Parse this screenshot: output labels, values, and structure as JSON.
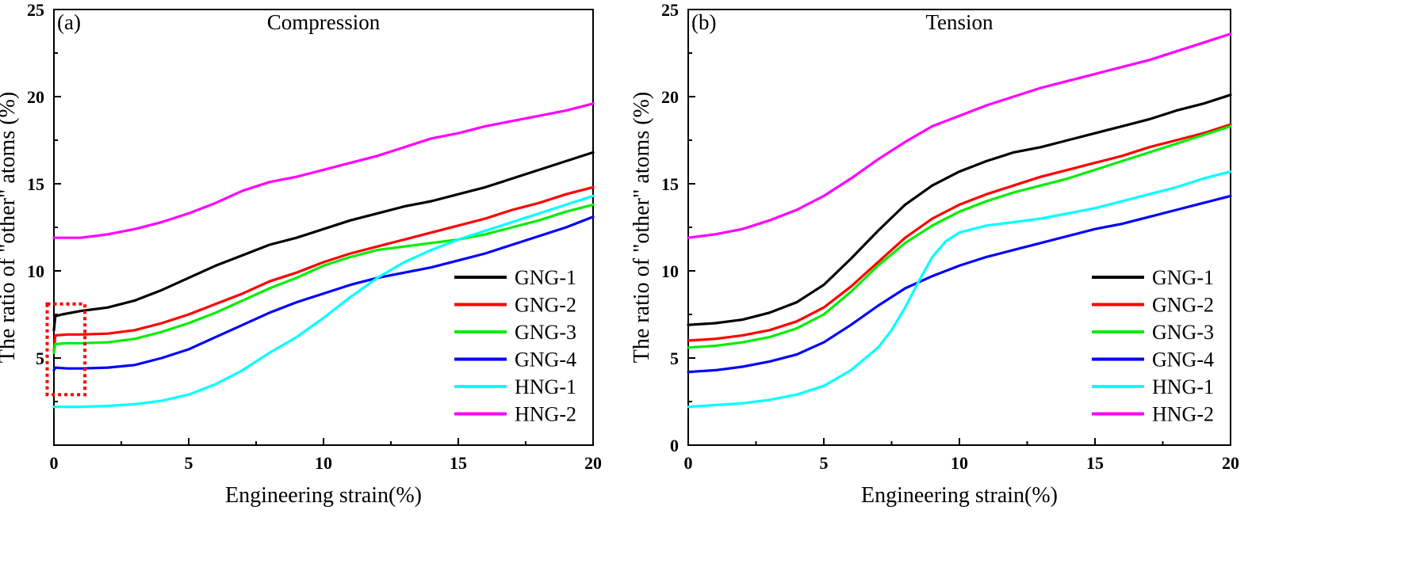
{
  "chart_data": [
    {
      "type": "line",
      "panel_label": "(a)",
      "title": "Compression",
      "xlabel": "Engineering strain(%)",
      "ylabel": "The ratio of  \"other\" atoms (%)",
      "xlim": [
        0,
        20
      ],
      "ylim": [
        0,
        25
      ],
      "xticks": [
        0,
        5,
        10,
        15,
        20
      ],
      "yticks": [
        5,
        10,
        15,
        20,
        25
      ],
      "grid": false,
      "legend_position": "lower-right",
      "annotation": "red dotted box at strain 0–1%",
      "series": [
        {
          "name": "GNG-1",
          "color": "#000000",
          "x": [
            0,
            0.05,
            0.3,
            1,
            2,
            3,
            4,
            5,
            6,
            7,
            8,
            9,
            10,
            11,
            12,
            13,
            14,
            15,
            16,
            17,
            18,
            19,
            20
          ],
          "y": [
            6.6,
            7.4,
            7.5,
            7.7,
            7.9,
            8.3,
            8.9,
            9.6,
            10.3,
            10.9,
            11.5,
            11.9,
            12.4,
            12.9,
            13.3,
            13.7,
            14.0,
            14.4,
            14.8,
            15.3,
            15.8,
            16.3,
            16.8
          ]
        },
        {
          "name": "GNG-2",
          "color": "#ff0000",
          "x": [
            0,
            0.05,
            0.5,
            1,
            2,
            3,
            4,
            5,
            6,
            7,
            8,
            9,
            10,
            11,
            12,
            13,
            14,
            15,
            16,
            17,
            18,
            19,
            20
          ],
          "y": [
            5.4,
            6.3,
            6.35,
            6.35,
            6.4,
            6.6,
            7.0,
            7.5,
            8.1,
            8.7,
            9.4,
            9.9,
            10.5,
            11.0,
            11.4,
            11.8,
            12.2,
            12.6,
            13.0,
            13.5,
            13.9,
            14.4,
            14.8
          ]
        },
        {
          "name": "GNG-3",
          "color": "#00ee00",
          "x": [
            0,
            0.05,
            0.5,
            1,
            2,
            3,
            4,
            5,
            6,
            7,
            8,
            9,
            10,
            11,
            12,
            13,
            14,
            15,
            16,
            17,
            18,
            19,
            20
          ],
          "y": [
            5.3,
            5.8,
            5.85,
            5.85,
            5.9,
            6.1,
            6.5,
            7.0,
            7.6,
            8.3,
            9.0,
            9.6,
            10.3,
            10.8,
            11.2,
            11.4,
            11.6,
            11.8,
            12.1,
            12.5,
            12.9,
            13.4,
            13.8
          ]
        },
        {
          "name": "GNG-4",
          "color": "#0000ff",
          "x": [
            0,
            0.05,
            0.5,
            1,
            2,
            3,
            4,
            5,
            6,
            7,
            8,
            9,
            10,
            11,
            12,
            13,
            14,
            15,
            16,
            17,
            18,
            19,
            20
          ],
          "y": [
            4.3,
            4.45,
            4.4,
            4.4,
            4.45,
            4.6,
            5.0,
            5.5,
            6.2,
            6.9,
            7.6,
            8.2,
            8.7,
            9.2,
            9.6,
            9.9,
            10.2,
            10.6,
            11.0,
            11.5,
            12.0,
            12.5,
            13.1
          ]
        },
        {
          "name": "HNG-1",
          "color": "#00ffff",
          "x": [
            0,
            1,
            2,
            3,
            4,
            5,
            6,
            7,
            8,
            9,
            10,
            11,
            12,
            13,
            14,
            15,
            16,
            17,
            18,
            19,
            20
          ],
          "y": [
            2.2,
            2.2,
            2.25,
            2.35,
            2.55,
            2.9,
            3.5,
            4.3,
            5.3,
            6.2,
            7.3,
            8.5,
            9.6,
            10.5,
            11.2,
            11.8,
            12.3,
            12.8,
            13.3,
            13.8,
            14.3
          ]
        },
        {
          "name": "HNG-2",
          "color": "#ff00ff",
          "x": [
            0,
            1,
            2,
            3,
            4,
            5,
            6,
            7,
            8,
            9,
            10,
            11,
            12,
            13,
            14,
            15,
            16,
            17,
            18,
            19,
            20
          ],
          "y": [
            11.9,
            11.9,
            12.1,
            12.4,
            12.8,
            13.3,
            13.9,
            14.6,
            15.1,
            15.4,
            15.8,
            16.2,
            16.6,
            17.1,
            17.6,
            17.9,
            18.3,
            18.6,
            18.9,
            19.2,
            19.6
          ]
        }
      ]
    },
    {
      "type": "line",
      "panel_label": "(b)",
      "title": "Tension",
      "xlabel": "Engineering strain(%)",
      "ylabel": "The ratio of  \"other\" atoms (%)",
      "xlim": [
        0,
        20
      ],
      "ylim": [
        0,
        25
      ],
      "xticks": [
        0,
        5,
        10,
        15,
        20
      ],
      "yticks": [
        0,
        5,
        10,
        15,
        20,
        25
      ],
      "grid": false,
      "legend_position": "lower-right",
      "series": [
        {
          "name": "GNG-1",
          "color": "#000000",
          "x": [
            0,
            1,
            2,
            3,
            4,
            5,
            6,
            7,
            8,
            9,
            10,
            11,
            12,
            13,
            14,
            15,
            16,
            17,
            18,
            19,
            20
          ],
          "y": [
            6.9,
            7.0,
            7.2,
            7.6,
            8.2,
            9.2,
            10.7,
            12.3,
            13.8,
            14.9,
            15.7,
            16.3,
            16.8,
            17.1,
            17.5,
            17.9,
            18.3,
            18.7,
            19.2,
            19.6,
            20.1
          ]
        },
        {
          "name": "GNG-2",
          "color": "#ff0000",
          "x": [
            0,
            1,
            2,
            3,
            4,
            5,
            6,
            7,
            8,
            9,
            10,
            11,
            12,
            13,
            14,
            15,
            16,
            17,
            18,
            19,
            20
          ],
          "y": [
            6.0,
            6.1,
            6.3,
            6.6,
            7.1,
            7.9,
            9.1,
            10.5,
            11.9,
            13.0,
            13.8,
            14.4,
            14.9,
            15.4,
            15.8,
            16.2,
            16.6,
            17.1,
            17.5,
            17.9,
            18.4
          ]
        },
        {
          "name": "GNG-3",
          "color": "#00ee00",
          "x": [
            0,
            1,
            2,
            3,
            4,
            5,
            6,
            7,
            8,
            9,
            10,
            11,
            12,
            13,
            14,
            15,
            16,
            17,
            18,
            19,
            20
          ],
          "y": [
            5.6,
            5.7,
            5.9,
            6.2,
            6.7,
            7.5,
            8.8,
            10.3,
            11.6,
            12.6,
            13.4,
            14.0,
            14.5,
            14.9,
            15.3,
            15.8,
            16.3,
            16.8,
            17.3,
            17.8,
            18.3
          ]
        },
        {
          "name": "GNG-4",
          "color": "#0000ff",
          "x": [
            0,
            1,
            2,
            3,
            4,
            5,
            6,
            7,
            8,
            9,
            10,
            11,
            12,
            13,
            14,
            15,
            16,
            17,
            18,
            19,
            20
          ],
          "y": [
            4.2,
            4.3,
            4.5,
            4.8,
            5.2,
            5.9,
            6.9,
            8.0,
            9.0,
            9.7,
            10.3,
            10.8,
            11.2,
            11.6,
            12.0,
            12.4,
            12.7,
            13.1,
            13.5,
            13.9,
            14.3
          ]
        },
        {
          "name": "HNG-1",
          "color": "#00ffff",
          "x": [
            0,
            1,
            2,
            3,
            4,
            5,
            6,
            7,
            7.5,
            8,
            8.5,
            9,
            9.5,
            10,
            11,
            12,
            13,
            14,
            15,
            16,
            17,
            18,
            19,
            20
          ],
          "y": [
            2.2,
            2.3,
            2.4,
            2.6,
            2.9,
            3.4,
            4.3,
            5.6,
            6.6,
            7.9,
            9.4,
            10.8,
            11.7,
            12.2,
            12.6,
            12.8,
            13.0,
            13.3,
            13.6,
            14.0,
            14.4,
            14.8,
            15.3,
            15.7
          ]
        },
        {
          "name": "HNG-2",
          "color": "#ff00ff",
          "x": [
            0,
            1,
            2,
            3,
            4,
            5,
            6,
            7,
            8,
            9,
            10,
            11,
            12,
            13,
            14,
            15,
            16,
            17,
            18,
            19,
            20
          ],
          "y": [
            11.9,
            12.1,
            12.4,
            12.9,
            13.5,
            14.3,
            15.3,
            16.4,
            17.4,
            18.3,
            18.9,
            19.5,
            20.0,
            20.5,
            20.9,
            21.3,
            21.7,
            22.1,
            22.6,
            23.1,
            23.6
          ]
        }
      ]
    }
  ]
}
